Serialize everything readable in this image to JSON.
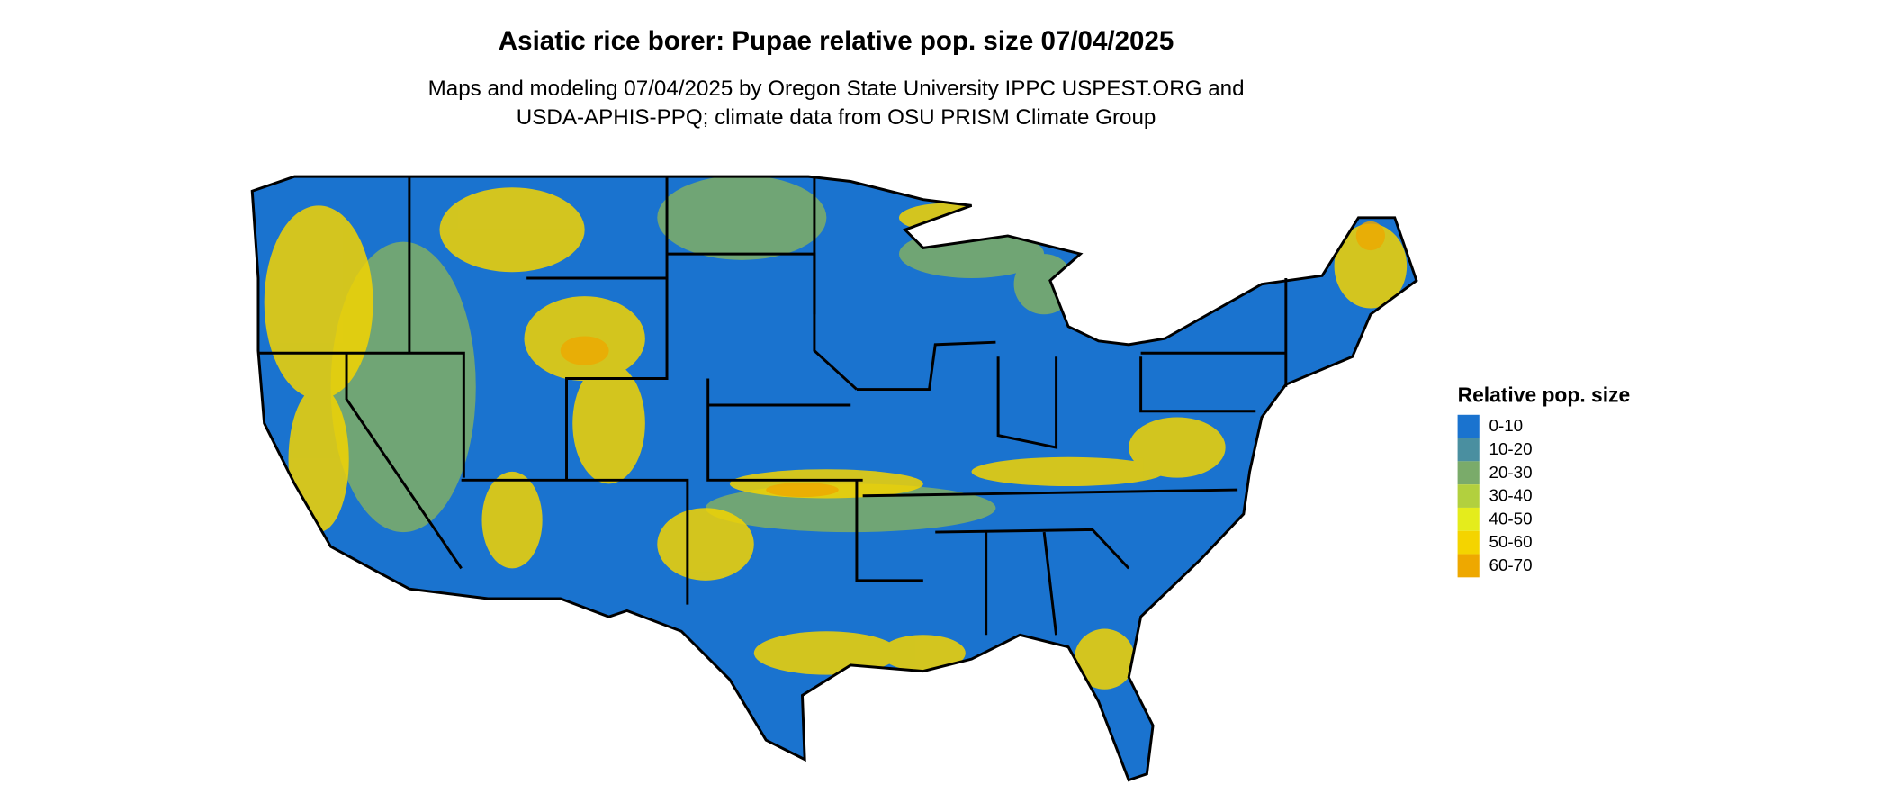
{
  "title": "Asiatic rice borer: Pupae relative pop. size 07/04/2025",
  "subtitle_lines": [
    "Maps and modeling 07/04/2025 by Oregon State University IPPC USPEST.ORG and",
    "USDA-APHIS-PPQ; climate data from OSU PRISM Climate Group"
  ],
  "legend": {
    "title": "Relative pop. size",
    "items": [
      {
        "label": "0-10",
        "color": "#1a73cf"
      },
      {
        "label": "10-20",
        "color": "#4a8fa0"
      },
      {
        "label": "20-30",
        "color": "#7aab6a"
      },
      {
        "label": "30-40",
        "color": "#b2d03e"
      },
      {
        "label": "40-50",
        "color": "#e4ec1c"
      },
      {
        "label": "50-60",
        "color": "#f4d400"
      },
      {
        "label": "60-70",
        "color": "#eea800"
      }
    ]
  }
}
